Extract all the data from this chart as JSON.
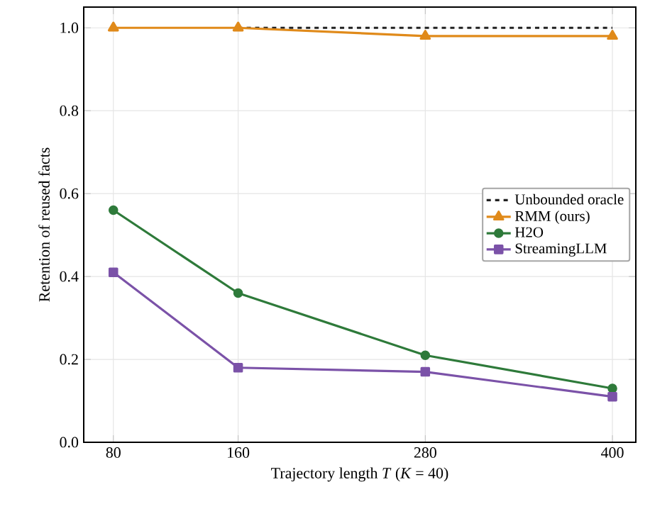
{
  "chart_data": {
    "type": "line",
    "xlabel": "Trajectory length *T*    (*K* = 40)",
    "ylabel": "Retention of reused facts",
    "x": [
      80,
      160,
      280,
      400
    ],
    "xlim": [
      61,
      415
    ],
    "xticks": [
      80,
      160,
      280,
      400
    ],
    "ylim": [
      0,
      1.05
    ],
    "yticks": [
      {
        "value": 0,
        "label": "0.0"
      },
      0.2,
      0.4,
      0.6,
      0.8,
      {
        "value": 1,
        "label": "1.0"
      }
    ],
    "grid": true,
    "legend": "right",
    "series": [
      {
        "name": "Unbounded oracle",
        "color": "#222222",
        "values": [
          null,
          1.0,
          1.0,
          1.0
        ],
        "line_style": "dashed",
        "marker": "none"
      },
      {
        "name": "RMM (ours)",
        "color": "#e08a1a",
        "values": [
          1.0,
          1.0,
          0.98,
          0.98
        ],
        "line_style": "solid",
        "marker": "triangle"
      },
      {
        "name": "H2O",
        "color": "#2e7a3a",
        "values": [
          0.56,
          0.36,
          0.21,
          0.13
        ],
        "line_style": "solid",
        "marker": "circle"
      },
      {
        "name": "StreamingLLM",
        "color": "#7b52a8",
        "values": [
          0.41,
          0.18,
          0.17,
          0.11
        ],
        "line_style": "solid",
        "marker": "square"
      }
    ]
  }
}
